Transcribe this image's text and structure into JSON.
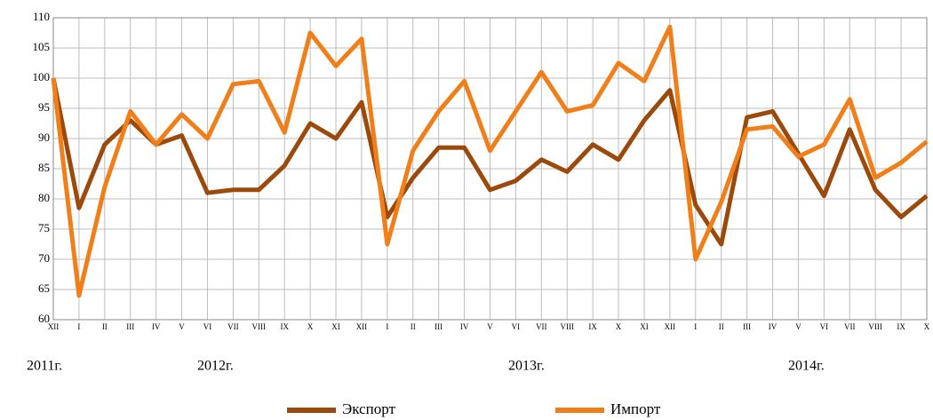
{
  "chart_data": {
    "type": "line",
    "categories": [
      "XII",
      "I",
      "II",
      "III",
      "IV",
      "V",
      "VI",
      "VII",
      "VIII",
      "IX",
      "X",
      "XI",
      "XII",
      "I",
      "II",
      "III",
      "IV",
      "V",
      "VI",
      "VII",
      "VIII",
      "IX",
      "X",
      "XI",
      "XII",
      "I",
      "II",
      "III",
      "IV",
      "V",
      "VI",
      "VII",
      "VIII",
      "IX",
      "X"
    ],
    "annotations": [
      "2011г.",
      "2012г.",
      "2013г.",
      "2014г."
    ],
    "series": [
      {
        "name": "Экспорт",
        "color": "#9c4a0c",
        "values": [
          100,
          78.5,
          89,
          93,
          89,
          90.5,
          81,
          81.5,
          81.5,
          85.5,
          92.5,
          90,
          96,
          77,
          83.5,
          88.5,
          88.5,
          81.5,
          83,
          86.5,
          84.5,
          89,
          86.5,
          93,
          98,
          79,
          72.5,
          93.5,
          94.5,
          87.5,
          80.5,
          91.5,
          81.5,
          77,
          80.5
        ]
      },
      {
        "name": "Импорт",
        "color": "#f07f1a",
        "values": [
          100,
          64,
          82,
          94.5,
          89,
          94,
          90,
          99,
          99.5,
          91,
          107.5,
          102,
          106.5,
          72.5,
          88,
          94.5,
          99.5,
          88,
          94.5,
          101,
          94.5,
          95.5,
          102.5,
          99.5,
          108.5,
          70,
          79.5,
          91.5,
          92,
          87,
          89,
          96.5,
          83.5,
          86,
          89.5
        ]
      }
    ],
    "ylim": [
      60,
      110
    ],
    "yticks": [
      60,
      65,
      70,
      75,
      80,
      85,
      90,
      95,
      100,
      105,
      110
    ],
    "grid": true,
    "legend": "bottom"
  }
}
